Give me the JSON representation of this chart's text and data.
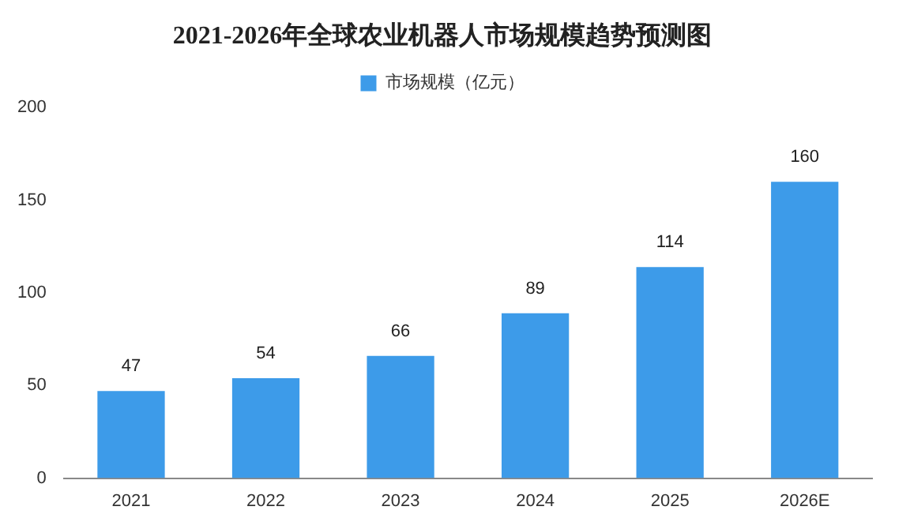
{
  "chart_data": {
    "type": "bar",
    "title": "2021-2026年全球农业机器人市场规模趋势预测图",
    "categories": [
      "2021",
      "2022",
      "2023",
      "2024",
      "2025",
      "2026E"
    ],
    "series": [
      {
        "name": "市场规模（亿元）",
        "color": "#3d9be9",
        "values": [
          47,
          54,
          66,
          89,
          114,
          160
        ]
      }
    ],
    "ylim": [
      0,
      200
    ],
    "yticks": [
      0,
      50,
      100,
      150,
      200
    ],
    "grid": false,
    "legend": "top",
    "data_labels": true
  }
}
